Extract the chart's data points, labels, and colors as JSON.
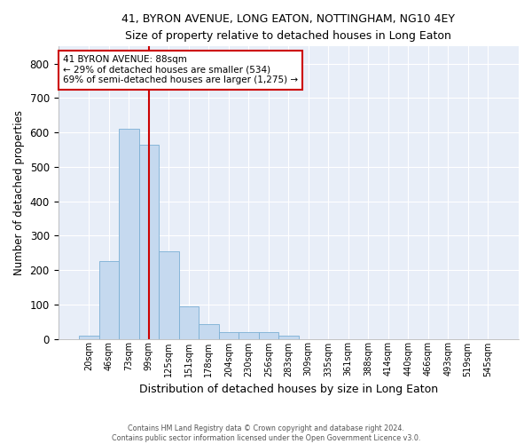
{
  "title": "41, BYRON AVENUE, LONG EATON, NOTTINGHAM, NG10 4EY",
  "subtitle": "Size of property relative to detached houses in Long Eaton",
  "xlabel": "Distribution of detached houses by size in Long Eaton",
  "ylabel": "Number of detached properties",
  "bar_color": "#c5d9ef",
  "bar_edge_color": "#7bafd4",
  "background_color": "#e8eef8",
  "grid_color": "#ffffff",
  "annotation_box_color": "#cc0000",
  "vline_color": "#cc0000",
  "bin_labels": [
    "20sqm",
    "46sqm",
    "73sqm",
    "99sqm",
    "125sqm",
    "151sqm",
    "178sqm",
    "204sqm",
    "230sqm",
    "256sqm",
    "283sqm",
    "309sqm",
    "335sqm",
    "361sqm",
    "388sqm",
    "414sqm",
    "440sqm",
    "466sqm",
    "493sqm",
    "519sqm",
    "545sqm"
  ],
  "bar_heights": [
    10,
    225,
    610,
    565,
    255,
    95,
    42,
    20,
    20,
    20,
    10,
    0,
    0,
    0,
    0,
    0,
    0,
    0,
    0,
    0,
    0
  ],
  "property_label": "41 BYRON AVENUE: 88sqm",
  "pct_smaller_detached": 29,
  "n_smaller_detached": 534,
  "pct_larger_semidetached": 69,
  "n_larger_semidetached": 1275,
  "vline_x": 3.0,
  "ylim": [
    0,
    850
  ],
  "yticks": [
    0,
    100,
    200,
    300,
    400,
    500,
    600,
    700,
    800
  ],
  "footer_line1": "Contains HM Land Registry data © Crown copyright and database right 2024.",
  "footer_line2": "Contains public sector information licensed under the Open Government Licence v3.0."
}
